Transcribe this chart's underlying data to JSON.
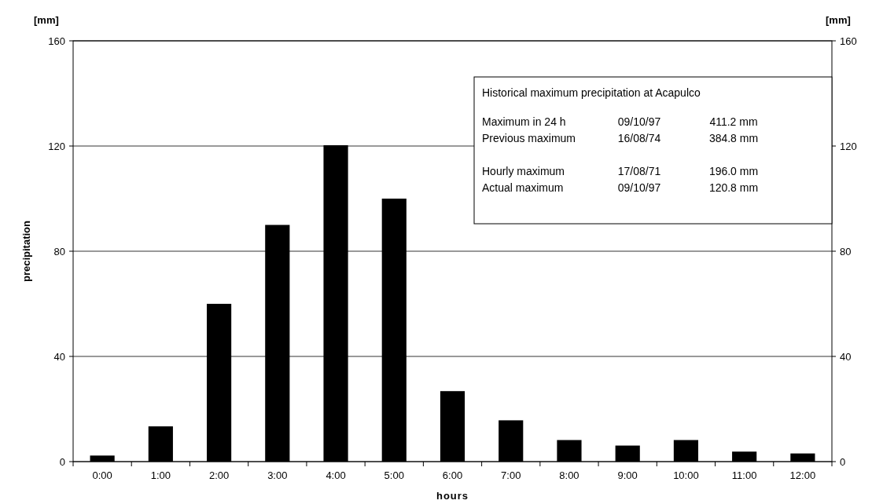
{
  "chart_data": {
    "type": "bar",
    "xlabel": "hours",
    "ylabel": "precipitation",
    "categories": [
      "0:00",
      "1:00",
      "2:00",
      "3:00",
      "4:00",
      "5:00",
      "6:00",
      "7:00",
      "8:00",
      "9:00",
      "10:00",
      "11:00",
      "12:00"
    ],
    "values": [
      2.3,
      13.4,
      60,
      90,
      120.3,
      100,
      26.8,
      15.7,
      8.2,
      6.1,
      8.2,
      3.8,
      3.1
    ],
    "color": "#000000",
    "ylim": [
      0,
      160
    ],
    "yticks": [
      0,
      40,
      80,
      120,
      160
    ],
    "y2lim": [
      0,
      160
    ],
    "y2ticks": [
      0,
      40,
      80,
      120,
      160
    ],
    "grid": "y",
    "annotations": [
      "[mm]",
      "[mm]",
      "Historical maximum precipitation at Acapulco",
      "Maximum in 24 h",
      "09/10/97",
      "411.2 mm",
      "Previous maximum",
      "16/08/74",
      "384.8 mm",
      "Hourly maximum",
      "17/08/71",
      "196.0 mm",
      "Actual maximum",
      "09/10/97",
      "120.8 mm"
    ]
  }
}
